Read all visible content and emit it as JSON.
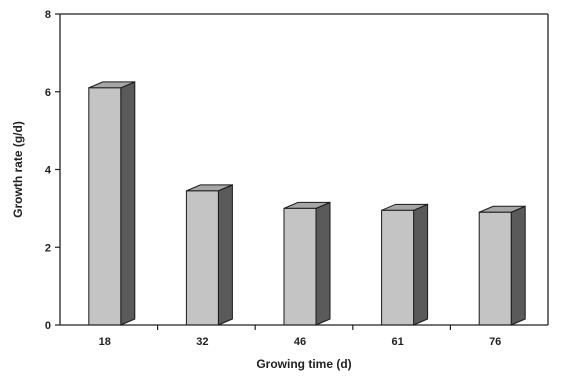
{
  "chart_data": {
    "type": "bar",
    "title": "",
    "categories": [
      "18",
      "32",
      "46",
      "61",
      "76"
    ],
    "values": [
      6.1,
      3.45,
      3.0,
      2.95,
      2.9
    ],
    "xlabel": "Growing time (d)",
    "ylabel": "Growth rate (g/d)",
    "ylim": [
      0,
      8
    ],
    "yticks": [
      "0",
      "2",
      "4",
      "6",
      "8"
    ],
    "grid": false,
    "legend": "none",
    "colors": {
      "bar_front": "#c4c4c4",
      "bar_top": "#a6a6a6",
      "bar_side": "#5a5a5a",
      "outline": "#1a1a1a",
      "axis": "#222222"
    }
  }
}
